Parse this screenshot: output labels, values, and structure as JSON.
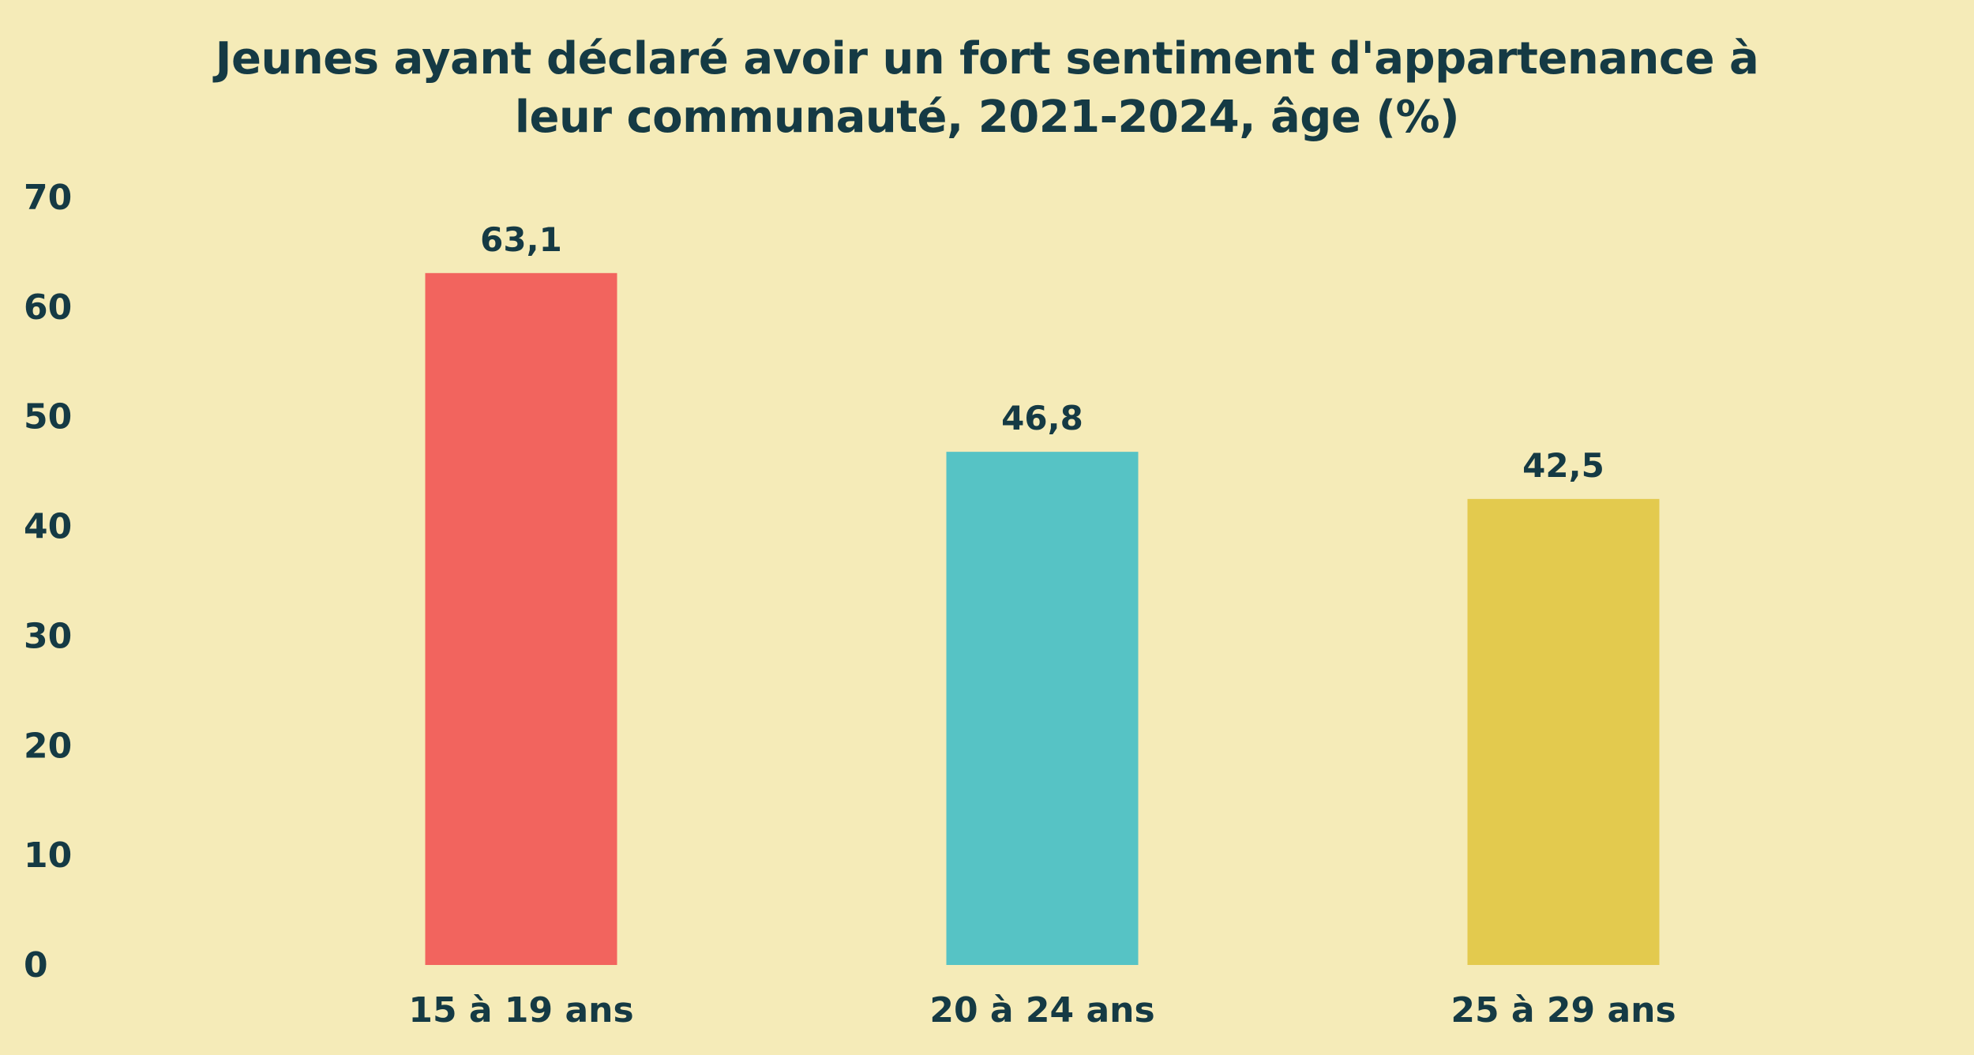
{
  "chart_data": {
    "type": "bar",
    "title_lines": [
      "Jeunes ayant déclaré avoir un fort sentiment d'appartenance à",
      "leur communauté, 2021-2024, âge (%)"
    ],
    "xlabel": "",
    "ylabel": "",
    "categories": [
      "15 à 19 ans",
      "20 à 24 ans",
      "25 à 29 ans"
    ],
    "values": [
      63.1,
      46.8,
      42.5
    ],
    "data_labels": [
      "63,1",
      "46,8",
      "42,5"
    ],
    "bar_colors": [
      "#f2645e",
      "#56c3c5",
      "#e3ca4e"
    ],
    "ylim": [
      0,
      70
    ],
    "yticks": [
      0,
      10,
      20,
      30,
      40,
      50,
      60,
      70
    ],
    "ytick_labels": [
      "0",
      "10",
      "20",
      "30",
      "40",
      "50",
      "60",
      "70"
    ],
    "grid": false,
    "legend": "none"
  }
}
